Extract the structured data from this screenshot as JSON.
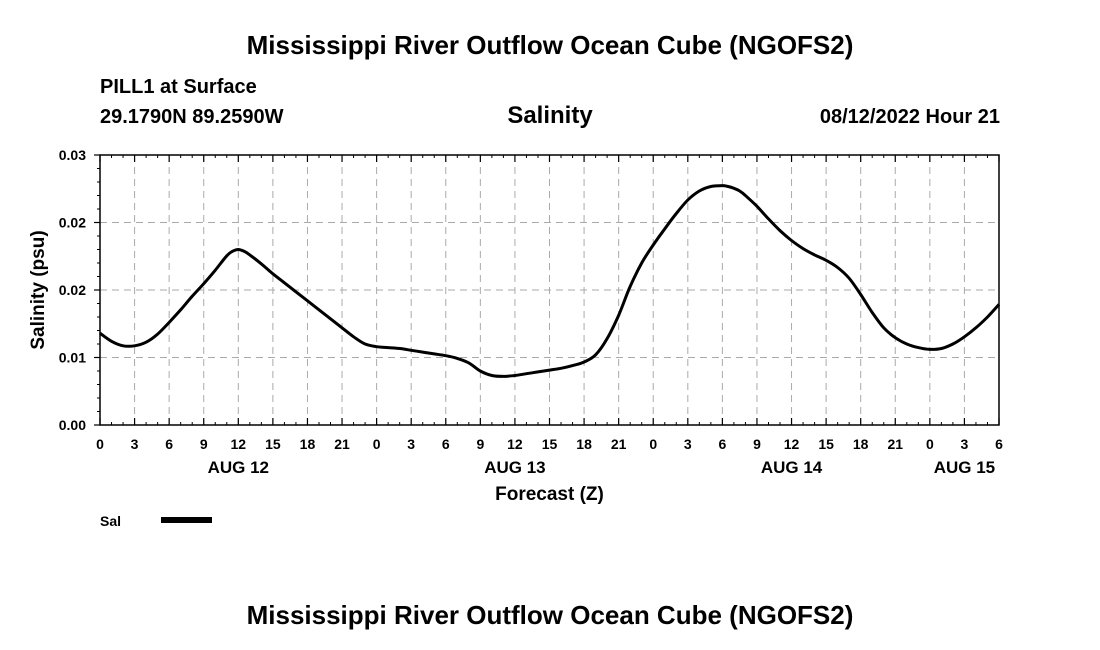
{
  "header": {
    "title_top": "Mississippi River Outflow Ocean Cube (NGOFS2)",
    "station": "PILL1 at Surface",
    "coords": "29.1790N  89.2590W",
    "chart_title": "Salinity",
    "datetime": "08/12/2022 Hour 21",
    "title_bottom": "Mississippi River Outflow Ocean Cube (NGOFS2)"
  },
  "legend": {
    "label": "Sal"
  },
  "chart_data": {
    "type": "line",
    "title": "Salinity",
    "xlabel": "Forecast (Z)",
    "ylabel": "Salinity (psu)",
    "xlim": [
      0,
      78
    ],
    "ylim": [
      0.0,
      0.03
    ],
    "yticks": [
      "0.00",
      "0.01",
      "0.02",
      "0.02",
      "0.03"
    ],
    "xticks": [
      "0",
      "3",
      "6",
      "9",
      "12",
      "15",
      "18",
      "21",
      "0",
      "3",
      "6",
      "9",
      "12",
      "15",
      "18",
      "21",
      "0",
      "3",
      "6",
      "9",
      "12",
      "15",
      "18",
      "21",
      "0",
      "3",
      "6"
    ],
    "day_labels": [
      {
        "label": "AUG 12",
        "hour": 12
      },
      {
        "label": "AUG 13",
        "hour": 36
      },
      {
        "label": "AUG 14",
        "hour": 60
      },
      {
        "label": "AUG 15",
        "hour": 75
      }
    ],
    "grid": true,
    "series": [
      {
        "name": "Sal",
        "x": [
          0,
          1,
          2,
          3,
          4,
          5,
          6,
          7,
          8,
          9,
          10,
          11,
          11.5,
          12,
          12.5,
          13,
          14,
          15,
          16,
          17,
          18,
          19,
          20,
          21,
          22,
          23,
          24,
          25,
          26,
          27,
          28,
          29,
          30,
          31,
          32,
          33,
          34,
          35,
          36,
          37,
          38,
          39,
          40,
          41,
          42,
          43,
          44,
          45,
          46,
          47,
          48,
          49,
          50,
          51,
          52,
          53,
          54,
          54.5,
          55,
          55.5,
          56,
          57,
          58,
          59,
          60,
          61,
          62,
          63,
          64,
          65,
          66,
          67,
          68,
          69,
          70,
          71,
          72,
          73,
          74,
          75,
          76,
          77,
          78
        ],
        "values": [
          0.0102,
          0.0093,
          0.0088,
          0.0088,
          0.0092,
          0.0101,
          0.0114,
          0.0128,
          0.0143,
          0.0157,
          0.0172,
          0.0188,
          0.0193,
          0.0195,
          0.0193,
          0.0189,
          0.0179,
          0.0168,
          0.0158,
          0.0148,
          0.0138,
          0.0128,
          0.0118,
          0.0108,
          0.0098,
          0.009,
          0.0087,
          0.0086,
          0.0085,
          0.0083,
          0.0081,
          0.0079,
          0.0077,
          0.0074,
          0.0069,
          0.006,
          0.0055,
          0.0054,
          0.0055,
          0.0057,
          0.0059,
          0.0061,
          0.0063,
          0.0066,
          0.007,
          0.0078,
          0.0096,
          0.0122,
          0.0154,
          0.018,
          0.02,
          0.0218,
          0.0235,
          0.025,
          0.026,
          0.0265,
          0.0266,
          0.0265,
          0.0263,
          0.026,
          0.0255,
          0.0243,
          0.0229,
          0.0216,
          0.0205,
          0.0196,
          0.0189,
          0.0183,
          0.0175,
          0.0163,
          0.0145,
          0.0125,
          0.0108,
          0.0097,
          0.009,
          0.0086,
          0.0084,
          0.0085,
          0.009,
          0.0098,
          0.0108,
          0.012,
          0.0134
        ]
      }
    ],
    "colors": {
      "line": "#000000",
      "grid": "#aaaaaa",
      "frame": "#000000"
    }
  }
}
